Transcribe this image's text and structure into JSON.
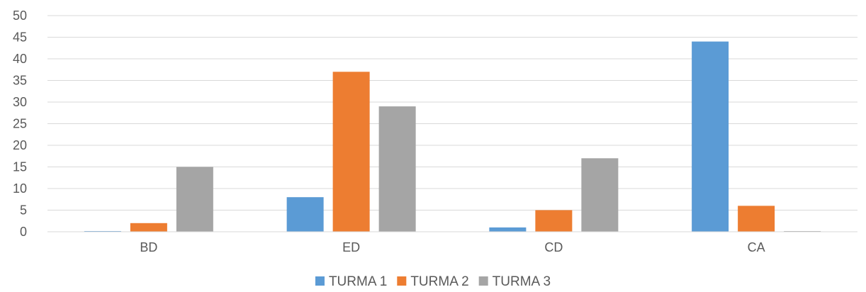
{
  "chart_data": {
    "type": "bar",
    "categories": [
      "BD",
      "ED",
      "CD",
      "CA"
    ],
    "series": [
      {
        "name": "TURMA 1",
        "color": "#5B9BD5",
        "values": [
          0,
          8,
          1,
          44
        ]
      },
      {
        "name": "TURMA 2",
        "color": "#ED7D31",
        "values": [
          2,
          37,
          5,
          6
        ]
      },
      {
        "name": "TURMA 3",
        "color": "#A5A5A5",
        "values": [
          15,
          29,
          17,
          0
        ]
      }
    ],
    "ylim": [
      0,
      50
    ],
    "yticks": [
      0,
      5,
      10,
      15,
      20,
      25,
      30,
      35,
      40,
      45,
      50
    ],
    "grid": true,
    "legend_position": "bottom"
  }
}
